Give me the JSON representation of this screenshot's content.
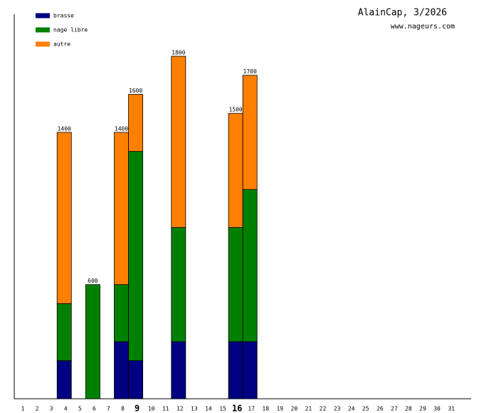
{
  "chart_data": {
    "type": "stacked-bar",
    "title": "AlainCap, 3/2026",
    "subtitle": "www.nageurs.com",
    "categories": [
      "1",
      "2",
      "3",
      "4",
      "5",
      "6",
      "7",
      "8",
      "9",
      "10",
      "11",
      "12",
      "13",
      "14",
      "15",
      "16",
      "17",
      "18",
      "19",
      "20",
      "21",
      "22",
      "23",
      "24",
      "25",
      "26",
      "27",
      "28",
      "29",
      "30",
      "31"
    ],
    "emphasized_categories": [
      "9",
      "16"
    ],
    "series": [
      {
        "name": "brasse",
        "color": "#000080",
        "values": [
          null,
          null,
          null,
          200,
          null,
          null,
          null,
          300,
          200,
          null,
          null,
          300,
          null,
          null,
          null,
          300,
          300,
          null,
          null,
          null,
          null,
          null,
          null,
          null,
          null,
          null,
          null,
          null,
          null,
          null,
          null
        ]
      },
      {
        "name": "nage libre",
        "color": "#008000",
        "values": [
          null,
          null,
          null,
          300,
          null,
          600,
          null,
          300,
          1100,
          null,
          null,
          600,
          null,
          null,
          null,
          600,
          800,
          null,
          null,
          null,
          null,
          null,
          null,
          null,
          null,
          null,
          null,
          null,
          null,
          null,
          null
        ]
      },
      {
        "name": "autre",
        "color": "#ff8000",
        "values": [
          null,
          null,
          null,
          900,
          null,
          null,
          null,
          800,
          300,
          null,
          null,
          900,
          null,
          null,
          null,
          600,
          600,
          null,
          null,
          null,
          null,
          null,
          null,
          null,
          null,
          null,
          null,
          null,
          null,
          null,
          null
        ]
      }
    ],
    "totals": [
      null,
      null,
      null,
      1400,
      null,
      600,
      null,
      1400,
      1600,
      null,
      null,
      1800,
      null,
      null,
      null,
      1500,
      1700,
      null,
      null,
      null,
      null,
      null,
      null,
      null,
      null,
      null,
      null,
      null,
      null,
      null,
      null
    ],
    "ylim": [
      0,
      1800
    ]
  }
}
